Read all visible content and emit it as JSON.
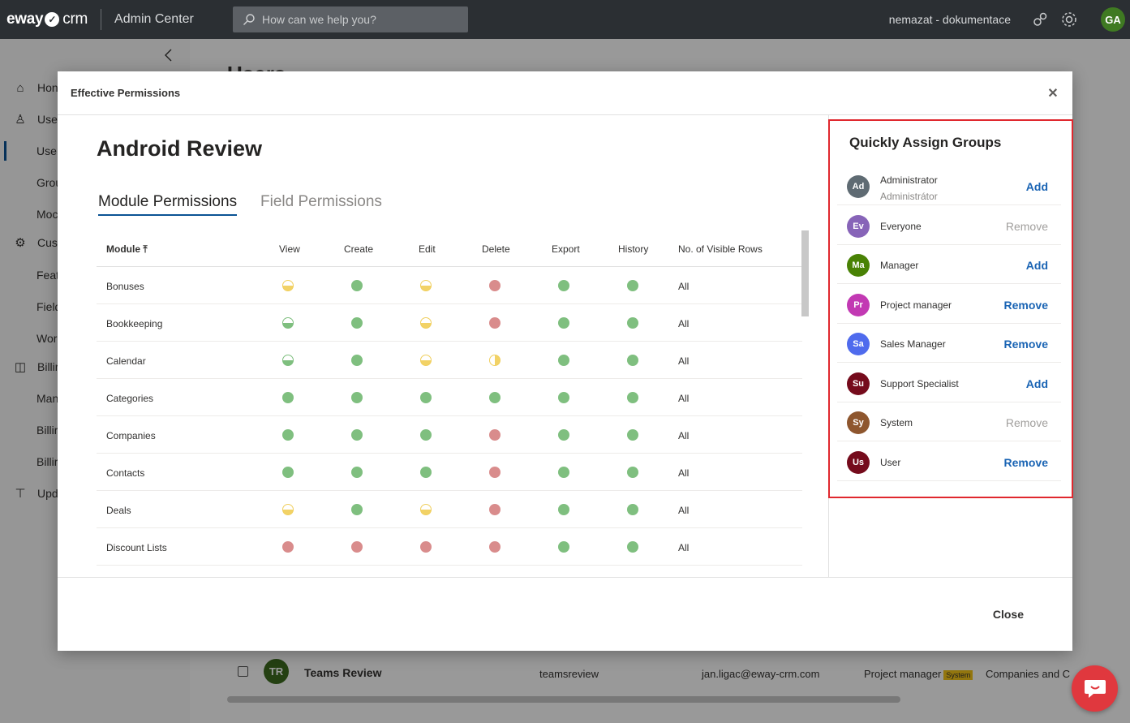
{
  "topbar": {
    "logo_left": "eway",
    "logo_right": "crm",
    "app_title": "Admin Center",
    "search_placeholder": "How can we help you?",
    "tenant": "nemazat - dokumentace",
    "avatar": "GA"
  },
  "sidebar": {
    "items": [
      {
        "label": "Hon",
        "icon": "home-icon"
      },
      {
        "label": "Use",
        "icon": "user-icon"
      },
      {
        "label": "Use",
        "icon": ""
      },
      {
        "label": "Grou",
        "icon": ""
      },
      {
        "label": "Moc",
        "icon": ""
      },
      {
        "label": "Cust",
        "icon": "gear-icon"
      },
      {
        "label": "Feat",
        "icon": ""
      },
      {
        "label": "Field",
        "icon": ""
      },
      {
        "label": "Wor",
        "icon": ""
      },
      {
        "label": "Billir",
        "icon": "bag-icon"
      },
      {
        "label": "Man",
        "icon": ""
      },
      {
        "label": "Billir",
        "icon": ""
      },
      {
        "label": "Billir",
        "icon": ""
      },
      {
        "label": "Upd",
        "icon": "update-icon"
      }
    ]
  },
  "background": {
    "page_title": "Users",
    "row": {
      "avatar": "TR",
      "name": "Teams Review",
      "login": "teamsreview",
      "email": "jan.ligac@eway-crm.com",
      "group": "Project manager",
      "tag": "System",
      "modules": "Companies and C"
    }
  },
  "modal": {
    "header": "Effective Permissions",
    "user_name": "Android Review",
    "tabs": [
      "Module Permissions",
      "Field Permissions"
    ],
    "columns": [
      "Module",
      "View",
      "Create",
      "Edit",
      "Delete",
      "Export",
      "History",
      "No. of Visible Rows"
    ],
    "rows": [
      {
        "module": "Bonuses",
        "perms": [
          "yellow-half",
          "green",
          "yellow-half",
          "red",
          "green",
          "green"
        ],
        "visible": "All"
      },
      {
        "module": "Bookkeeping",
        "perms": [
          "green-half",
          "green",
          "yellow-half",
          "red",
          "green",
          "green"
        ],
        "visible": "All"
      },
      {
        "module": "Calendar",
        "perms": [
          "green-half",
          "green",
          "yellow-half",
          "yellow-quarter",
          "green",
          "green"
        ],
        "visible": "All"
      },
      {
        "module": "Categories",
        "perms": [
          "green",
          "green",
          "green",
          "green",
          "green",
          "green"
        ],
        "visible": "All"
      },
      {
        "module": "Companies",
        "perms": [
          "green",
          "green",
          "green",
          "red",
          "green",
          "green"
        ],
        "visible": "All"
      },
      {
        "module": "Contacts",
        "perms": [
          "green",
          "green",
          "green",
          "red",
          "green",
          "green"
        ],
        "visible": "All"
      },
      {
        "module": "Deals",
        "perms": [
          "yellow-half",
          "green",
          "yellow-half",
          "red",
          "green",
          "green"
        ],
        "visible": "All"
      },
      {
        "module": "Discount Lists",
        "perms": [
          "red",
          "red",
          "red",
          "red",
          "green",
          "green"
        ],
        "visible": "All"
      }
    ],
    "close_label": "Close"
  },
  "quick_assign": {
    "title": "Quickly Assign Groups",
    "groups": [
      {
        "initials": "Ad",
        "name": "Administrator",
        "sub": "Administrátor",
        "action": "Add",
        "enabled": true,
        "color": "#5f6b73"
      },
      {
        "initials": "Ev",
        "name": "Everyone",
        "sub": "",
        "action": "Remove",
        "enabled": false,
        "color": "#8764b8"
      },
      {
        "initials": "Ma",
        "name": "Manager",
        "sub": "",
        "action": "Add",
        "enabled": true,
        "color": "#498205"
      },
      {
        "initials": "Pr",
        "name": "Project manager",
        "sub": "",
        "action": "Remove",
        "enabled": true,
        "color": "#c239b3"
      },
      {
        "initials": "Sa",
        "name": "Sales Manager",
        "sub": "",
        "action": "Remove",
        "enabled": true,
        "color": "#4f6bed"
      },
      {
        "initials": "Su",
        "name": "Support Specialist",
        "sub": "",
        "action": "Add",
        "enabled": true,
        "color": "#750b1c"
      },
      {
        "initials": "Sy",
        "name": "System",
        "sub": "",
        "action": "Remove",
        "enabled": false,
        "color": "#8e562e"
      },
      {
        "initials": "Us",
        "name": "User",
        "sub": "",
        "action": "Remove",
        "enabled": true,
        "color": "#750b1c"
      }
    ]
  },
  "colors": {
    "accent": "#1a64b4",
    "highlight_border": "#e0282e",
    "allowed": "#7fbf7f",
    "denied": "#d98c8c",
    "partial": "#f2d266"
  }
}
